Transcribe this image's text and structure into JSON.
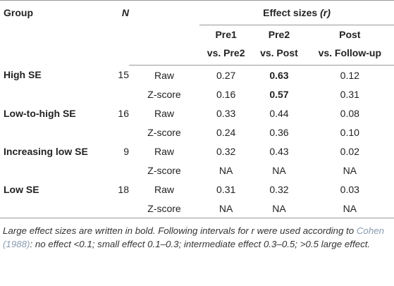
{
  "header": {
    "group": "Group",
    "n": "N",
    "effect_sizes": "Effect sizes",
    "effect_sizes_symbol": "(r)",
    "columns": [
      [
        "Pre1",
        "vs. Pre2"
      ],
      [
        "Pre2",
        "vs. Post"
      ],
      [
        "Post",
        "vs. Follow-up"
      ]
    ]
  },
  "rows": [
    {
      "group": "High SE",
      "n": "15",
      "measures": [
        {
          "type": "Raw",
          "values": [
            "0.27",
            "0.63",
            "0.12"
          ],
          "bold": [
            false,
            true,
            false
          ]
        },
        {
          "type": "Z-score",
          "values": [
            "0.16",
            "0.57",
            "0.31"
          ],
          "bold": [
            false,
            true,
            false
          ]
        }
      ]
    },
    {
      "group": "Low-to-high SE",
      "n": "16",
      "measures": [
        {
          "type": "Raw",
          "values": [
            "0.33",
            "0.44",
            "0.08"
          ],
          "bold": [
            false,
            false,
            false
          ]
        },
        {
          "type": "Z-score",
          "values": [
            "0.24",
            "0.36",
            "0.10"
          ],
          "bold": [
            false,
            false,
            false
          ]
        }
      ]
    },
    {
      "group": "Increasing low SE",
      "n": "9",
      "measures": [
        {
          "type": "Raw",
          "values": [
            "0.32",
            "0.43",
            "0.02"
          ],
          "bold": [
            false,
            false,
            false
          ]
        },
        {
          "type": "Z-score",
          "values": [
            "NA",
            "NA",
            "NA"
          ],
          "bold": [
            false,
            false,
            false
          ]
        }
      ]
    },
    {
      "group": "Low SE",
      "n": "18",
      "measures": [
        {
          "type": "Raw",
          "values": [
            "0.31",
            "0.32",
            "0.03"
          ],
          "bold": [
            false,
            false,
            false
          ]
        },
        {
          "type": "Z-score",
          "values": [
            "NA",
            "NA",
            "NA"
          ],
          "bold": [
            false,
            false,
            false
          ]
        }
      ]
    }
  ],
  "footnote": {
    "before": "Large effect sizes are written in bold. Following intervals for r were used according to ",
    "citation": "Cohen (1988)",
    "after": ": no effect <0.1; small effect 0.1–0.3; intermediate effect 0.3–0.5; >0.5 large effect."
  }
}
